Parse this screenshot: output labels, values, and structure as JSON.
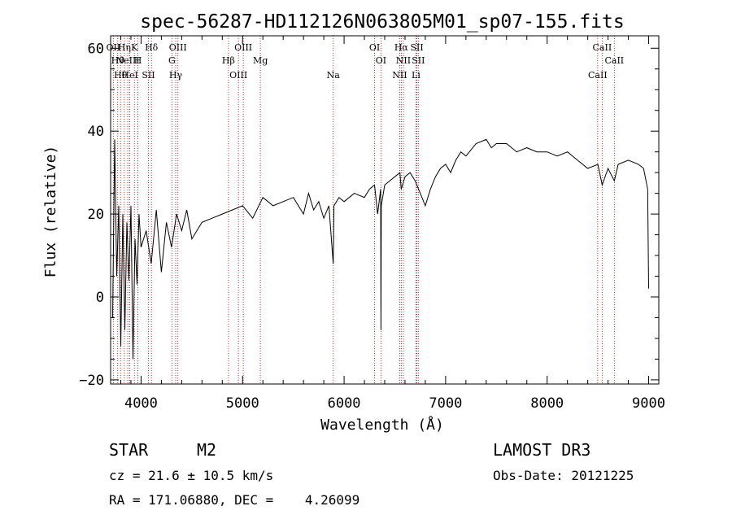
{
  "chart_data": {
    "type": "line",
    "title": "spec-56287-HD112126N063805M01_sp07-155.fits",
    "xlabel": "Wavelength (Å)",
    "ylabel": "Flux (relative)",
    "xlim": [
      3700,
      9100
    ],
    "ylim": [
      -21,
      63
    ],
    "xticks": [
      4000,
      5000,
      6000,
      7000,
      8000,
      9000
    ],
    "yticks": [
      -20,
      0,
      20,
      40,
      60
    ],
    "xtick_labels": [
      "4000",
      "5000",
      "6000",
      "7000",
      "8000",
      "9000"
    ],
    "ytick_labels": [
      "−20",
      "0",
      "20",
      "40",
      "60"
    ],
    "series": [
      {
        "name": "flux",
        "x": [
          3720,
          3740,
          3760,
          3780,
          3800,
          3820,
          3840,
          3860,
          3880,
          3900,
          3920,
          3940,
          3960,
          3980,
          4000,
          4050,
          4100,
          4150,
          4200,
          4250,
          4300,
          4350,
          4400,
          4450,
          4500,
          4600,
          4700,
          4800,
          4900,
          5000,
          5100,
          5200,
          5300,
          5400,
          5500,
          5600,
          5650,
          5700,
          5750,
          5800,
          5850,
          5893,
          5900,
          5950,
          6000,
          6100,
          6200,
          6250,
          6300,
          6330,
          6360,
          6363,
          6366,
          6400,
          6450,
          6500,
          6550,
          6563,
          6600,
          6650,
          6700,
          6750,
          6800,
          6850,
          6900,
          6950,
          7000,
          7050,
          7100,
          7150,
          7200,
          7300,
          7400,
          7450,
          7500,
          7600,
          7700,
          7800,
          7900,
          8000,
          8100,
          8200,
          8300,
          8400,
          8500,
          8542,
          8600,
          8662,
          8700,
          8800,
          8900,
          8950,
          8990,
          9000
        ],
        "values": [
          -5,
          38,
          5,
          22,
          -12,
          20,
          -8,
          18,
          4,
          22,
          -15,
          14,
          3,
          20,
          12,
          16,
          8,
          21,
          6,
          18,
          12,
          20,
          16,
          21,
          14,
          18,
          19,
          20,
          21,
          22,
          19,
          24,
          22,
          23,
          24,
          20,
          25,
          21,
          23,
          19,
          22,
          8,
          22,
          24,
          23,
          25,
          24,
          26,
          27,
          20,
          26,
          -8,
          22,
          27,
          28,
          29,
          30,
          26,
          29,
          30,
          28,
          25,
          22,
          26,
          29,
          31,
          32,
          30,
          33,
          35,
          34,
          37,
          38,
          36,
          37,
          37,
          35,
          36,
          35,
          35,
          34,
          35,
          33,
          31,
          32,
          27,
          31,
          28,
          32,
          33,
          32,
          31,
          26,
          2
        ]
      }
    ],
    "lines": [
      {
        "wl": 3727,
        "label": "OII"
      },
      {
        "wl": 3770,
        "label": "Hθ"
      },
      {
        "wl": 3798,
        "label": "Hθ"
      },
      {
        "wl": 3835,
        "label": "Hη"
      },
      {
        "wl": 3869,
        "label": "NeIII"
      },
      {
        "wl": 3889,
        "label": "HeI"
      },
      {
        "wl": 3934,
        "label": "K"
      },
      {
        "wl": 3969,
        "label": "H"
      },
      {
        "wl": 4072,
        "label": "SII"
      },
      {
        "wl": 4102,
        "label": "Hδ"
      },
      {
        "wl": 4304,
        "label": "G"
      },
      {
        "wl": 4341,
        "label": "Hγ"
      },
      {
        "wl": 4363,
        "label": "OIII"
      },
      {
        "wl": 4861,
        "label": "Hβ"
      },
      {
        "wl": 4959,
        "label": "OIII"
      },
      {
        "wl": 5007,
        "label": "OIII"
      },
      {
        "wl": 5175,
        "label": "Mg"
      },
      {
        "wl": 5893,
        "label": "Na"
      },
      {
        "wl": 6300,
        "label": "OI"
      },
      {
        "wl": 6363,
        "label": "OI"
      },
      {
        "wl": 6548,
        "label": "NII"
      },
      {
        "wl": 6563,
        "label": "Hα"
      },
      {
        "wl": 6584,
        "label": "NII"
      },
      {
        "wl": 6708,
        "label": "Li"
      },
      {
        "wl": 6717,
        "label": "SII"
      },
      {
        "wl": 6731,
        "label": "SII"
      },
      {
        "wl": 8498,
        "label": "CaII"
      },
      {
        "wl": 8542,
        "label": "CaII"
      },
      {
        "wl": 8662,
        "label": "CaII"
      }
    ]
  },
  "info": {
    "class_label": "STAR",
    "subclass": "M2",
    "cz": "cz = 21.6 ± 10.5 km/s",
    "radec": "RA = 171.06880, DEC =    4.26099",
    "survey": "LAMOST DR3",
    "obsdate": "Obs-Date: 20121225"
  }
}
